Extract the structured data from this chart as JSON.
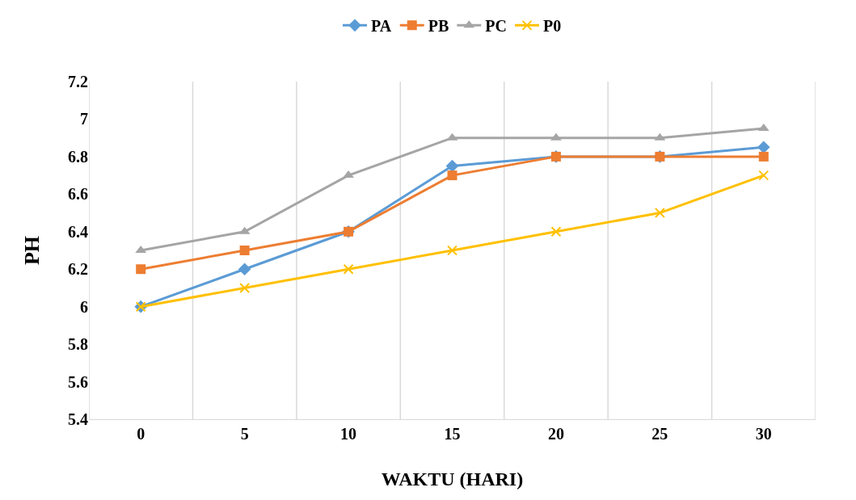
{
  "chart_data": {
    "type": "line",
    "xlabel": "WAKTU (HARI)",
    "ylabel": "PH",
    "categories": [
      "0",
      "5",
      "10",
      "15",
      "20",
      "25",
      "30"
    ],
    "series": [
      {
        "name": "PA",
        "color": "#5b9bd5",
        "marker": "diamond",
        "values": [
          6.0,
          6.2,
          6.4,
          6.75,
          6.8,
          6.8,
          6.85
        ]
      },
      {
        "name": "PB",
        "color": "#ed7d31",
        "marker": "square",
        "values": [
          6.2,
          6.3,
          6.4,
          6.7,
          6.8,
          6.8,
          6.8
        ]
      },
      {
        "name": "PC",
        "color": "#a5a5a5",
        "marker": "triangle",
        "values": [
          6.3,
          6.4,
          6.7,
          6.9,
          6.9,
          6.9,
          6.95
        ]
      },
      {
        "name": "P0",
        "color": "#ffc000",
        "marker": "cross",
        "values": [
          6.0,
          6.1,
          6.2,
          6.3,
          6.4,
          6.5,
          6.7
        ]
      }
    ],
    "ylim": [
      5.4,
      7.2
    ],
    "yticks": [
      5.4,
      5.6,
      5.8,
      6,
      6.2,
      6.4,
      6.6,
      6.8,
      7,
      7.2
    ],
    "grid": "x",
    "legend": "top",
    "line_style": "solid"
  }
}
